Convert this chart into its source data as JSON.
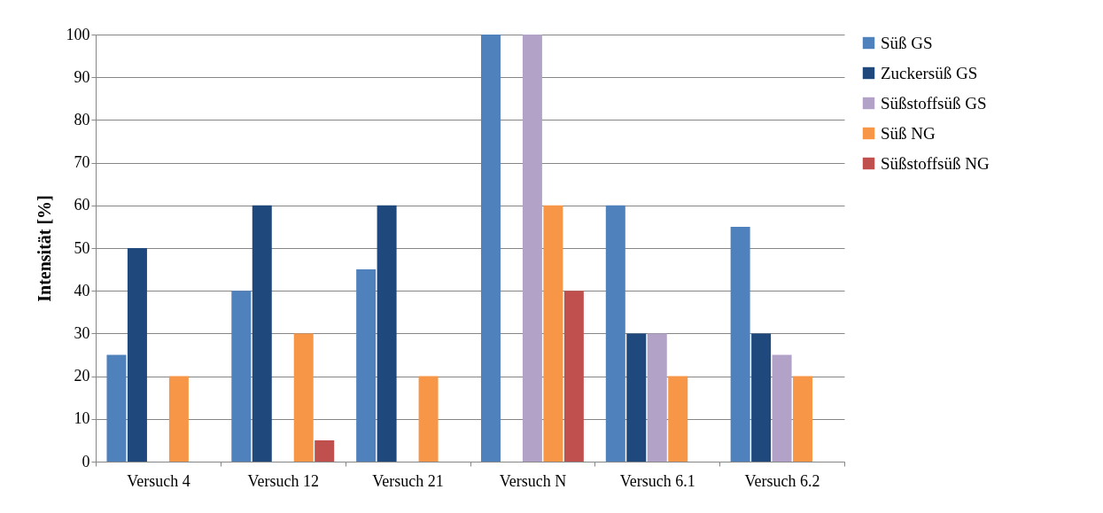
{
  "chart_data": {
    "type": "bar",
    "ylabel": "Intensität [%]",
    "categories": [
      "Versuch 4",
      "Versuch 12",
      "Versuch 21",
      "Versuch N",
      "Versuch 6.1",
      "Versuch 6.2"
    ],
    "series": [
      {
        "name": "Süß GS",
        "color": "#4f81bd",
        "values": [
          25,
          40,
          45,
          100,
          60,
          55
        ]
      },
      {
        "name": "Zuckersüß GS",
        "color": "#1f497d",
        "values": [
          50,
          60,
          60,
          0,
          30,
          30
        ]
      },
      {
        "name": "Süßstoffsüß GS",
        "color": "#b3a2c7",
        "values": [
          0,
          0,
          0,
          100,
          30,
          25
        ]
      },
      {
        "name": "Süß NG",
        "color": "#f79646",
        "values": [
          20,
          30,
          20,
          60,
          20,
          20
        ]
      },
      {
        "name": "Süßstoffsüß NG",
        "color": "#c0504d",
        "values": [
          0,
          5,
          0,
          40,
          0,
          0
        ]
      }
    ],
    "ylim": [
      0,
      100
    ],
    "yticks": [
      0,
      10,
      20,
      30,
      40,
      50,
      60,
      70,
      80,
      90,
      100
    ],
    "grid": "y",
    "legend": "right"
  }
}
